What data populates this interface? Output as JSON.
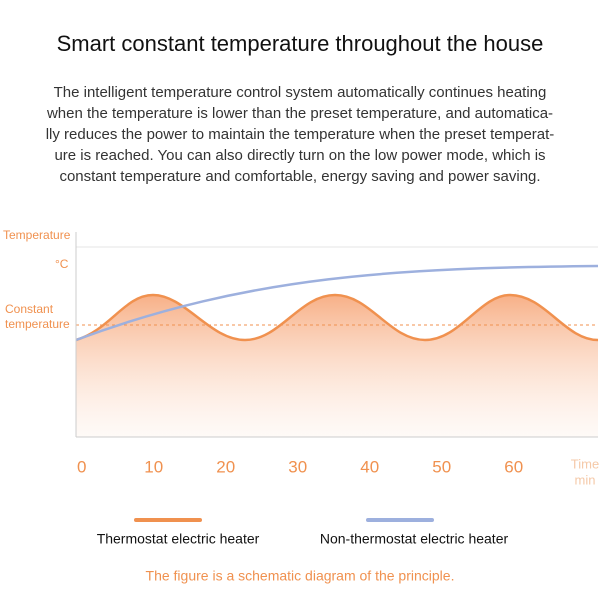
{
  "chart_data": {
    "type": "line",
    "title": "Smart constant temperature throughout the house",
    "description": [
      "The intelligent temperature control system automatically continues heating",
      "when the temperature is lower than the preset temperature, and automatica-",
      "lly reduces the power to maintain the temperature when the preset temperat-",
      "ure is reached. You can also directly turn on the low power mode, which is",
      "constant temperature and comfortable, energy saving and power saving."
    ],
    "y_label": "Temperature",
    "y_unit": "°C",
    "reference_label": [
      "Constant",
      "temperature"
    ],
    "x_label": [
      "Time",
      "min"
    ],
    "xlim": [
      -0.8,
      71.7
    ],
    "xticks": [
      0,
      10,
      20,
      30,
      40,
      50,
      60
    ],
    "legend": [
      {
        "name": "Thermostat electric heater",
        "color": "#f0914f"
      },
      {
        "name": "Non-thermostat electric heater",
        "color": "#9db0de"
      }
    ],
    "footnote": "The figure is a schematic diagram of the principle."
  }
}
